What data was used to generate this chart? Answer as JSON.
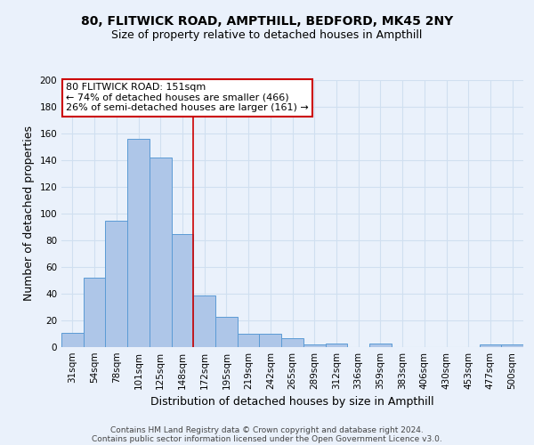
{
  "title_line1": "80, FLITWICK ROAD, AMPTHILL, BEDFORD, MK45 2NY",
  "title_line2": "Size of property relative to detached houses in Ampthill",
  "xlabel": "Distribution of detached houses by size in Ampthill",
  "ylabel": "Number of detached properties",
  "categories": [
    "31sqm",
    "54sqm",
    "78sqm",
    "101sqm",
    "125sqm",
    "148sqm",
    "172sqm",
    "195sqm",
    "219sqm",
    "242sqm",
    "265sqm",
    "289sqm",
    "312sqm",
    "336sqm",
    "359sqm",
    "383sqm",
    "406sqm",
    "430sqm",
    "453sqm",
    "477sqm",
    "500sqm"
  ],
  "values": [
    11,
    52,
    95,
    156,
    142,
    85,
    39,
    23,
    10,
    10,
    7,
    2,
    3,
    0,
    3,
    0,
    0,
    0,
    0,
    2,
    2
  ],
  "bar_color": "#aec6e8",
  "bar_edge_color": "#5b9bd5",
  "property_line_x": 5.5,
  "property_line_color": "#cc0000",
  "annotation_text": "80 FLITWICK ROAD: 151sqm\n← 74% of detached houses are smaller (466)\n26% of semi-detached houses are larger (161) →",
  "annotation_box_color": "#ffffff",
  "annotation_box_edge_color": "#cc0000",
  "ylim": [
    0,
    200
  ],
  "yticks": [
    0,
    20,
    40,
    60,
    80,
    100,
    120,
    140,
    160,
    180,
    200
  ],
  "footer_line1": "Contains HM Land Registry data © Crown copyright and database right 2024.",
  "footer_line2": "Contains public sector information licensed under the Open Government Licence v3.0.",
  "bg_color": "#eaf1fb",
  "grid_color": "#d0dff0",
  "title_fontsize": 10,
  "subtitle_fontsize": 9,
  "axis_label_fontsize": 9,
  "tick_fontsize": 7.5,
  "annotation_fontsize": 8,
  "footer_fontsize": 6.5
}
